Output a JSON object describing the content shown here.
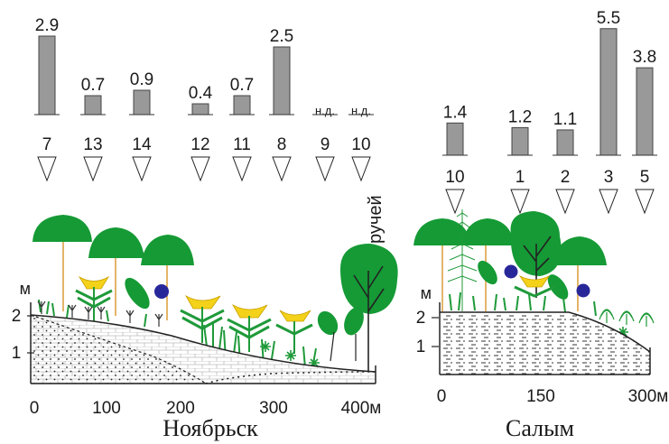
{
  "panels": [
    {
      "id": "noyabrsk",
      "caption": "Ноябрьск",
      "y_unit_label": "м",
      "y_ticks": [
        "2",
        "1"
      ],
      "x_ticks": [
        "0",
        "100",
        "200",
        "300",
        "400м"
      ],
      "stream_label": "ручей",
      "bars": [
        {
          "site": "7",
          "value": 2.9,
          "label": "2.9"
        },
        {
          "site": "13",
          "value": 0.7,
          "label": "0.7"
        },
        {
          "site": "14",
          "value": 0.9,
          "label": "0.9"
        },
        {
          "site": "12",
          "value": 0.4,
          "label": "0.4"
        },
        {
          "site": "11",
          "value": 0.7,
          "label": "0.7"
        },
        {
          "site": "8",
          "value": 2.5,
          "label": "2.5"
        },
        {
          "site": "9",
          "value": null,
          "label": "н.д."
        },
        {
          "site": "10",
          "value": null,
          "label": "н.д."
        }
      ]
    },
    {
      "id": "salym",
      "caption": "Салым",
      "y_unit_label": "м",
      "y_ticks": [
        "2",
        "1"
      ],
      "x_ticks": [
        "0",
        "150",
        "300м"
      ],
      "bars": [
        {
          "site": "10",
          "value": 1.4,
          "label": "1.4"
        },
        {
          "site": "1",
          "value": 1.2,
          "label": "1.2"
        },
        {
          "site": "2",
          "value": 1.1,
          "label": "1.1"
        },
        {
          "site": "3",
          "value": 5.5,
          "label": "5.5"
        },
        {
          "site": "5",
          "value": 3.8,
          "label": "3.8"
        }
      ]
    }
  ],
  "colors": {
    "bar": "#999999",
    "bar_stroke": "#444444",
    "tree": "#159a35",
    "trunk": "#e4b46a",
    "flower": "#f4d21a",
    "berry": "#28279a",
    "grass": "#1f9a3a",
    "soil_fill": "#ffffff"
  }
}
